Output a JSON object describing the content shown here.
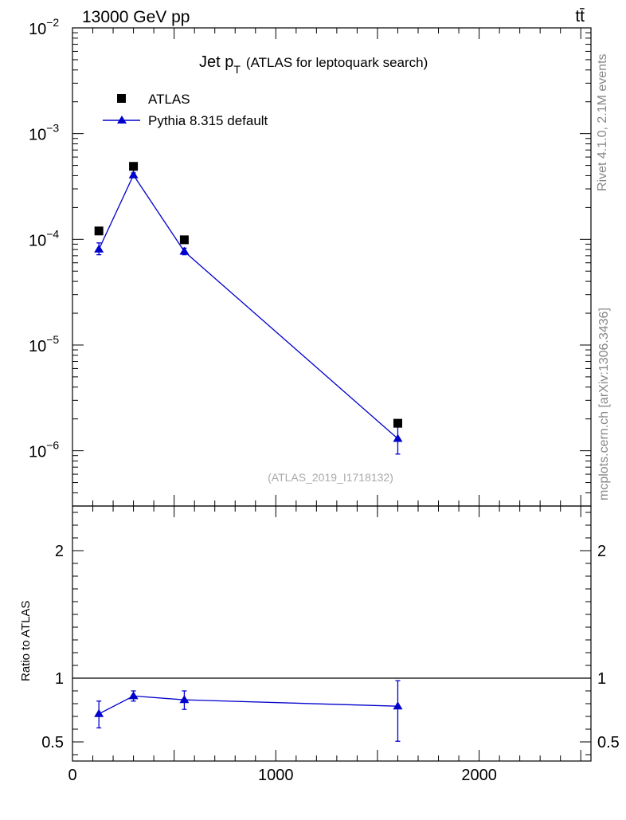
{
  "header": {
    "energy_label": "13000 GeV pp",
    "process_label": "tt̄",
    "side_label_top": "Rivet 4.1.0,  2.1M events",
    "side_label_bottom": "mcplots.cern.ch [arXiv:1306.3436]"
  },
  "chart_data": [
    {
      "type": "scatter",
      "title_main": "Jet p",
      "title_sub": "T",
      "title_rest": "(ATLAS for leptoquark search)",
      "analysis_id": "(ATLAS_2019_I1718132)",
      "yscale": "log",
      "xlim": [
        0,
        2550
      ],
      "ylim": [
        3e-07,
        0.01
      ],
      "y_ticks": [
        {
          "value": 0.01,
          "base": "10",
          "exp": "−2"
        },
        {
          "value": 0.001,
          "base": "10",
          "exp": "−3"
        },
        {
          "value": 0.0001,
          "base": "10",
          "exp": "−4"
        },
        {
          "value": 1e-05,
          "base": "10",
          "exp": "−5"
        },
        {
          "value": 1e-06,
          "base": "10",
          "exp": "−6"
        }
      ],
      "legend_position": "top-left",
      "series": [
        {
          "name": "ATLAS",
          "marker": "square",
          "color": "#000000",
          "line": false,
          "points": [
            {
              "x": 130,
              "y": 0.00012
            },
            {
              "x": 300,
              "y": 0.00049
            },
            {
              "x": 550,
              "y": 9.9e-05
            },
            {
              "x": 1600,
              "y": 1.82e-06
            }
          ]
        },
        {
          "name": "Pythia 8.315 default",
          "marker": "triangle",
          "color": "#0000cc",
          "line": true,
          "points": [
            {
              "x": 130,
              "y": 8.05e-05,
              "lo": 7.15e-05,
              "hi": 9.25e-05
            },
            {
              "x": 300,
              "y": 0.000405,
              "lo": 0.000385,
              "hi": 0.000425
            },
            {
              "x": 550,
              "y": 7.68e-05,
              "lo": 7.15e-05,
              "hi": 8.25e-05
            },
            {
              "x": 1600,
              "y": 1.3e-06,
              "lo": 9.3e-07,
              "hi": 1.8e-06
            }
          ]
        }
      ]
    },
    {
      "type": "line",
      "ylabel": "Ratio to ATLAS",
      "xlim": [
        0,
        2550
      ],
      "ylim": [
        0.35,
        2.35
      ],
      "reference_line": 1,
      "x_ticks": [
        {
          "value": 0,
          "label": "0"
        },
        {
          "value": 1000,
          "label": "1000"
        },
        {
          "value": 2000,
          "label": "2000"
        }
      ],
      "y_ticks": [
        {
          "value": 0.5,
          "label": "0.5"
        },
        {
          "value": 1,
          "label": "1"
        },
        {
          "value": 2,
          "label": "2"
        }
      ],
      "series": [
        {
          "name": "Pythia 8.315 default / ATLAS",
          "color": "#0000cc",
          "points": [
            {
              "x": 130,
              "y": 0.72,
              "lo": 0.61,
              "hi": 0.82
            },
            {
              "x": 300,
              "y": 0.86,
              "lo": 0.82,
              "hi": 0.9
            },
            {
              "x": 550,
              "y": 0.83,
              "lo": 0.755,
              "hi": 0.9
            },
            {
              "x": 1600,
              "y": 0.78,
              "lo": 0.505,
              "hi": 0.98
            }
          ]
        }
      ]
    }
  ]
}
